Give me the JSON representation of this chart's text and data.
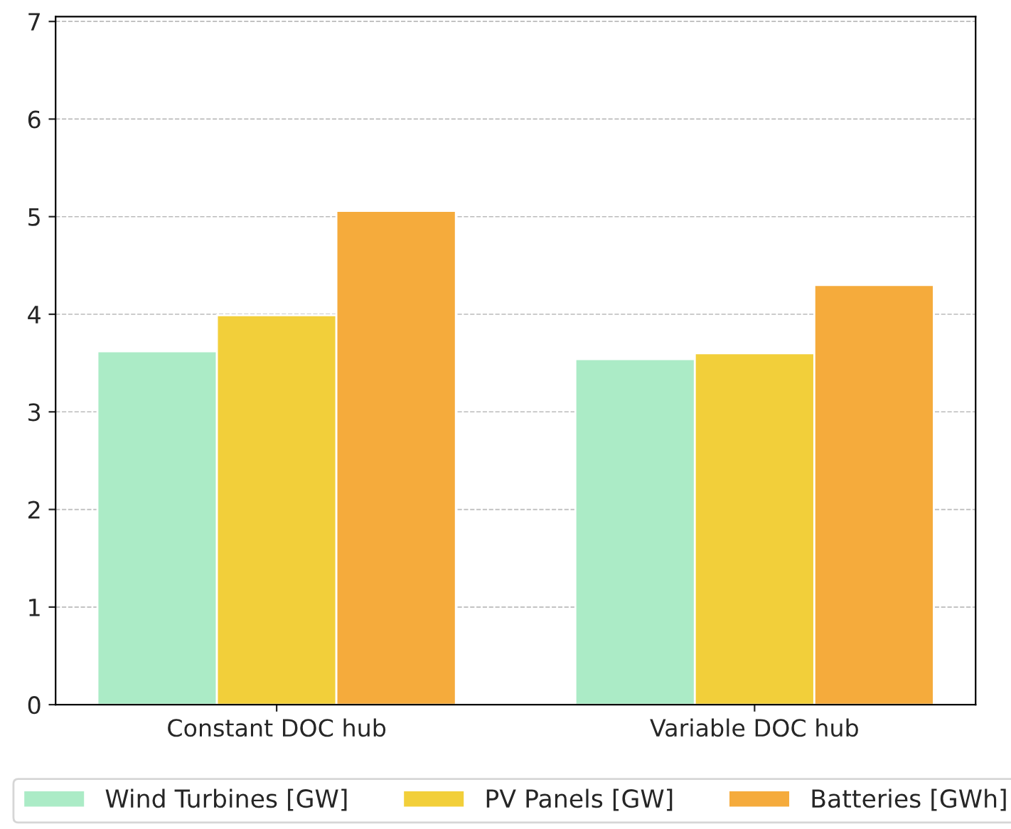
{
  "chart_data": {
    "type": "bar",
    "categories": [
      "Constant DOC hub",
      "Variable DOC hub"
    ],
    "series": [
      {
        "name": "Wind Turbines [GW]",
        "color": "#abebc6",
        "values": [
          3.62,
          3.54
        ]
      },
      {
        "name": "PV Panels [GW]",
        "color": "#f2cf3a",
        "values": [
          3.99,
          3.6
        ]
      },
      {
        "name": "Batteries [GWh]",
        "color": "#f5ab3c",
        "values": [
          5.06,
          4.3
        ]
      }
    ],
    "ylim": [
      0,
      7.05
    ],
    "yticks": [
      0,
      1,
      2,
      3,
      4,
      5,
      6,
      7
    ],
    "grid": "y",
    "legend": "bottom"
  }
}
